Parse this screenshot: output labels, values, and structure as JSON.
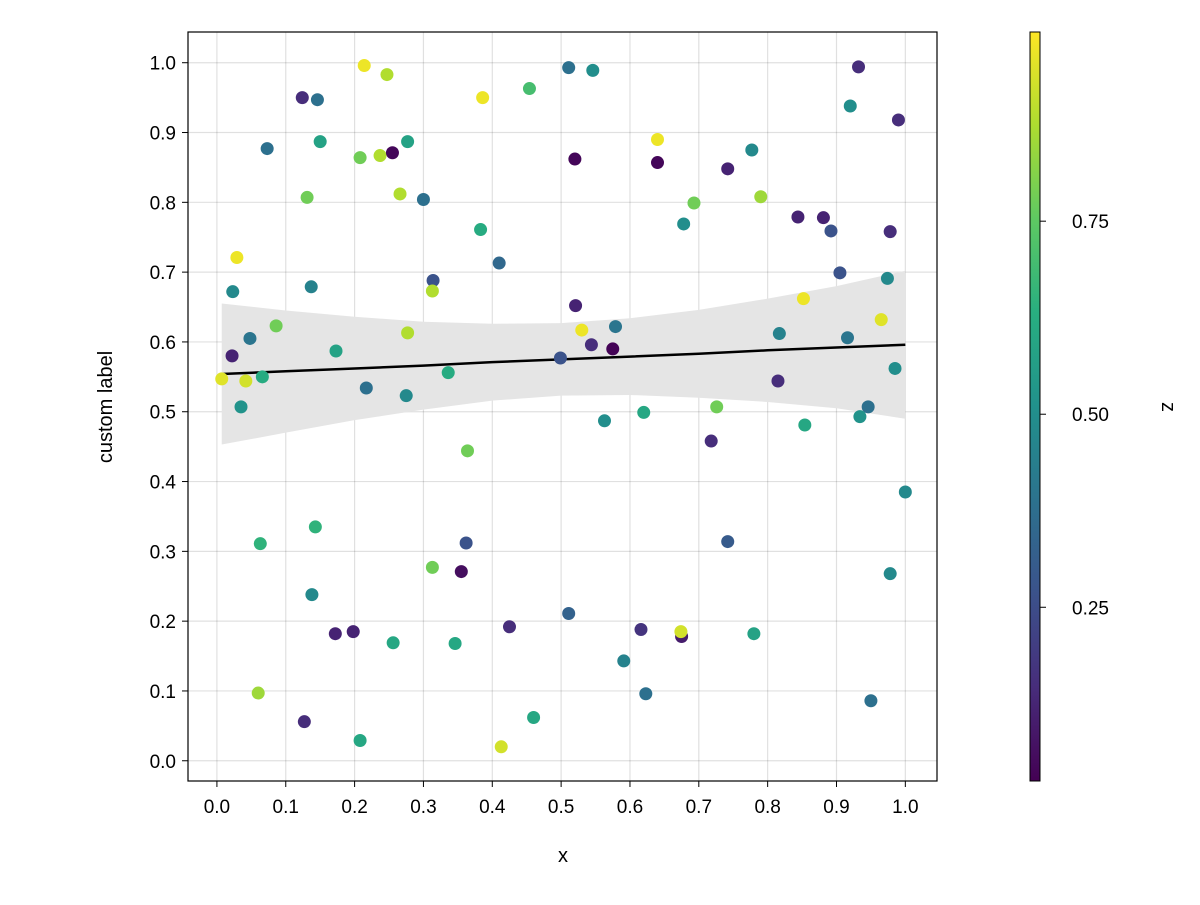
{
  "chart_data": {
    "type": "scatter",
    "title": "",
    "xlabel": "x",
    "ylabel": "custom label",
    "colorbar_label": "z",
    "xlim": [
      -0.042,
      1.046
    ],
    "ylim": [
      -0.029,
      1.044
    ],
    "grid": true,
    "colormap": "viridis",
    "colorrange": [
      0.025,
      0.995
    ],
    "xticks": [
      "0.0",
      "0.1",
      "0.2",
      "0.3",
      "0.4",
      "0.5",
      "0.6",
      "0.7",
      "0.8",
      "0.9",
      "1.0"
    ],
    "yticks": [
      "0.0",
      "0.1",
      "0.2",
      "0.3",
      "0.4",
      "0.5",
      "0.6",
      "0.7",
      "0.8",
      "0.9",
      "1.0"
    ],
    "colorbar_ticks": [
      "0.25",
      "0.50",
      "0.75"
    ],
    "colorbar_tick_values": [
      0.25,
      0.5,
      0.75
    ],
    "regression": {
      "x": [
        0.007,
        0.1,
        0.2,
        0.3,
        0.4,
        0.5,
        0.6,
        0.7,
        0.8,
        0.9,
        1.0
      ],
      "fit": [
        0.554,
        0.558,
        0.562,
        0.566,
        0.571,
        0.575,
        0.579,
        0.583,
        0.588,
        0.592,
        0.596
      ],
      "lower": [
        0.453,
        0.47,
        0.488,
        0.503,
        0.516,
        0.523,
        0.524,
        0.52,
        0.514,
        0.505,
        0.49
      ],
      "upper": [
        0.655,
        0.645,
        0.636,
        0.629,
        0.626,
        0.627,
        0.634,
        0.646,
        0.662,
        0.68,
        0.702
      ],
      "line_color": "#000000",
      "band_color": "#e5e5e5"
    },
    "points": [
      [
        0.214,
        0.996,
        0.97
      ],
      [
        0.247,
        0.983,
        0.88
      ],
      [
        0.124,
        0.95,
        0.15
      ],
      [
        0.146,
        0.947,
        0.38
      ],
      [
        0.15,
        0.887,
        0.58
      ],
      [
        0.073,
        0.877,
        0.38
      ],
      [
        0.208,
        0.864,
        0.78
      ],
      [
        0.237,
        0.867,
        0.88
      ],
      [
        0.255,
        0.871,
        0.04
      ],
      [
        0.277,
        0.887,
        0.58
      ],
      [
        0.131,
        0.807,
        0.78
      ],
      [
        0.266,
        0.812,
        0.88
      ],
      [
        0.3,
        0.804,
        0.38
      ],
      [
        0.029,
        0.721,
        0.97
      ],
      [
        0.511,
        0.993,
        0.38
      ],
      [
        0.546,
        0.989,
        0.5
      ],
      [
        0.386,
        0.95,
        0.97
      ],
      [
        0.454,
        0.963,
        0.7
      ],
      [
        0.52,
        0.862,
        0.04
      ],
      [
        0.64,
        0.89,
        0.97
      ],
      [
        0.64,
        0.857,
        0.04
      ],
      [
        0.383,
        0.761,
        0.62
      ],
      [
        0.41,
        0.713,
        0.35
      ],
      [
        0.678,
        0.769,
        0.5
      ],
      [
        0.693,
        0.799,
        0.78
      ],
      [
        0.932,
        0.994,
        0.15
      ],
      [
        0.92,
        0.938,
        0.5
      ],
      [
        0.99,
        0.918,
        0.15
      ],
      [
        0.777,
        0.875,
        0.48
      ],
      [
        0.742,
        0.848,
        0.12
      ],
      [
        0.79,
        0.808,
        0.85
      ],
      [
        0.844,
        0.779,
        0.12
      ],
      [
        0.881,
        0.778,
        0.12
      ],
      [
        0.892,
        0.759,
        0.27
      ],
      [
        0.978,
        0.758,
        0.15
      ],
      [
        0.905,
        0.699,
        0.27
      ],
      [
        0.974,
        0.691,
        0.48
      ],
      [
        0.023,
        0.672,
        0.48
      ],
      [
        0.137,
        0.679,
        0.45
      ],
      [
        0.314,
        0.688,
        0.27
      ],
      [
        0.313,
        0.673,
        0.88
      ],
      [
        0.086,
        0.623,
        0.78
      ],
      [
        0.048,
        0.605,
        0.4
      ],
      [
        0.022,
        0.58,
        0.12
      ],
      [
        0.173,
        0.587,
        0.58
      ],
      [
        0.277,
        0.613,
        0.88
      ],
      [
        0.007,
        0.547,
        0.95
      ],
      [
        0.042,
        0.544,
        0.93
      ],
      [
        0.066,
        0.55,
        0.62
      ],
      [
        0.035,
        0.507,
        0.52
      ],
      [
        0.217,
        0.534,
        0.38
      ],
      [
        0.275,
        0.523,
        0.48
      ],
      [
        0.521,
        0.652,
        0.12
      ],
      [
        0.53,
        0.617,
        0.97
      ],
      [
        0.579,
        0.622,
        0.4
      ],
      [
        0.544,
        0.596,
        0.15
      ],
      [
        0.575,
        0.59,
        0.03
      ],
      [
        0.499,
        0.577,
        0.27
      ],
      [
        0.336,
        0.556,
        0.62
      ],
      [
        0.563,
        0.487,
        0.5
      ],
      [
        0.62,
        0.499,
        0.6
      ],
      [
        0.364,
        0.444,
        0.78
      ],
      [
        0.852,
        0.662,
        0.97
      ],
      [
        0.965,
        0.632,
        0.95
      ],
      [
        0.817,
        0.612,
        0.45
      ],
      [
        0.916,
        0.606,
        0.4
      ],
      [
        0.985,
        0.562,
        0.5
      ],
      [
        0.815,
        0.544,
        0.15
      ],
      [
        0.726,
        0.507,
        0.78
      ],
      [
        0.946,
        0.507,
        0.38
      ],
      [
        0.934,
        0.493,
        0.52
      ],
      [
        0.854,
        0.481,
        0.6
      ],
      [
        0.718,
        0.458,
        0.15
      ],
      [
        1.0,
        0.385,
        0.48
      ],
      [
        0.143,
        0.335,
        0.65
      ],
      [
        0.063,
        0.311,
        0.65
      ],
      [
        0.313,
        0.277,
        0.78
      ],
      [
        0.138,
        0.238,
        0.48
      ],
      [
        0.172,
        0.182,
        0.12
      ],
      [
        0.198,
        0.185,
        0.12
      ],
      [
        0.256,
        0.169,
        0.6
      ],
      [
        0.06,
        0.097,
        0.85
      ],
      [
        0.127,
        0.056,
        0.15
      ],
      [
        0.208,
        0.029,
        0.6
      ],
      [
        0.355,
        0.271,
        0.06
      ],
      [
        0.362,
        0.312,
        0.27
      ],
      [
        0.425,
        0.192,
        0.15
      ],
      [
        0.346,
        0.168,
        0.6
      ],
      [
        0.511,
        0.211,
        0.33
      ],
      [
        0.616,
        0.188,
        0.17
      ],
      [
        0.675,
        0.178,
        0.1
      ],
      [
        0.674,
        0.185,
        0.93
      ],
      [
        0.591,
        0.143,
        0.45
      ],
      [
        0.623,
        0.096,
        0.38
      ],
      [
        0.46,
        0.062,
        0.6
      ],
      [
        0.413,
        0.02,
        0.93
      ],
      [
        0.742,
        0.314,
        0.3
      ],
      [
        0.978,
        0.268,
        0.48
      ],
      [
        0.78,
        0.182,
        0.58
      ],
      [
        0.95,
        0.086,
        0.38
      ]
    ]
  }
}
